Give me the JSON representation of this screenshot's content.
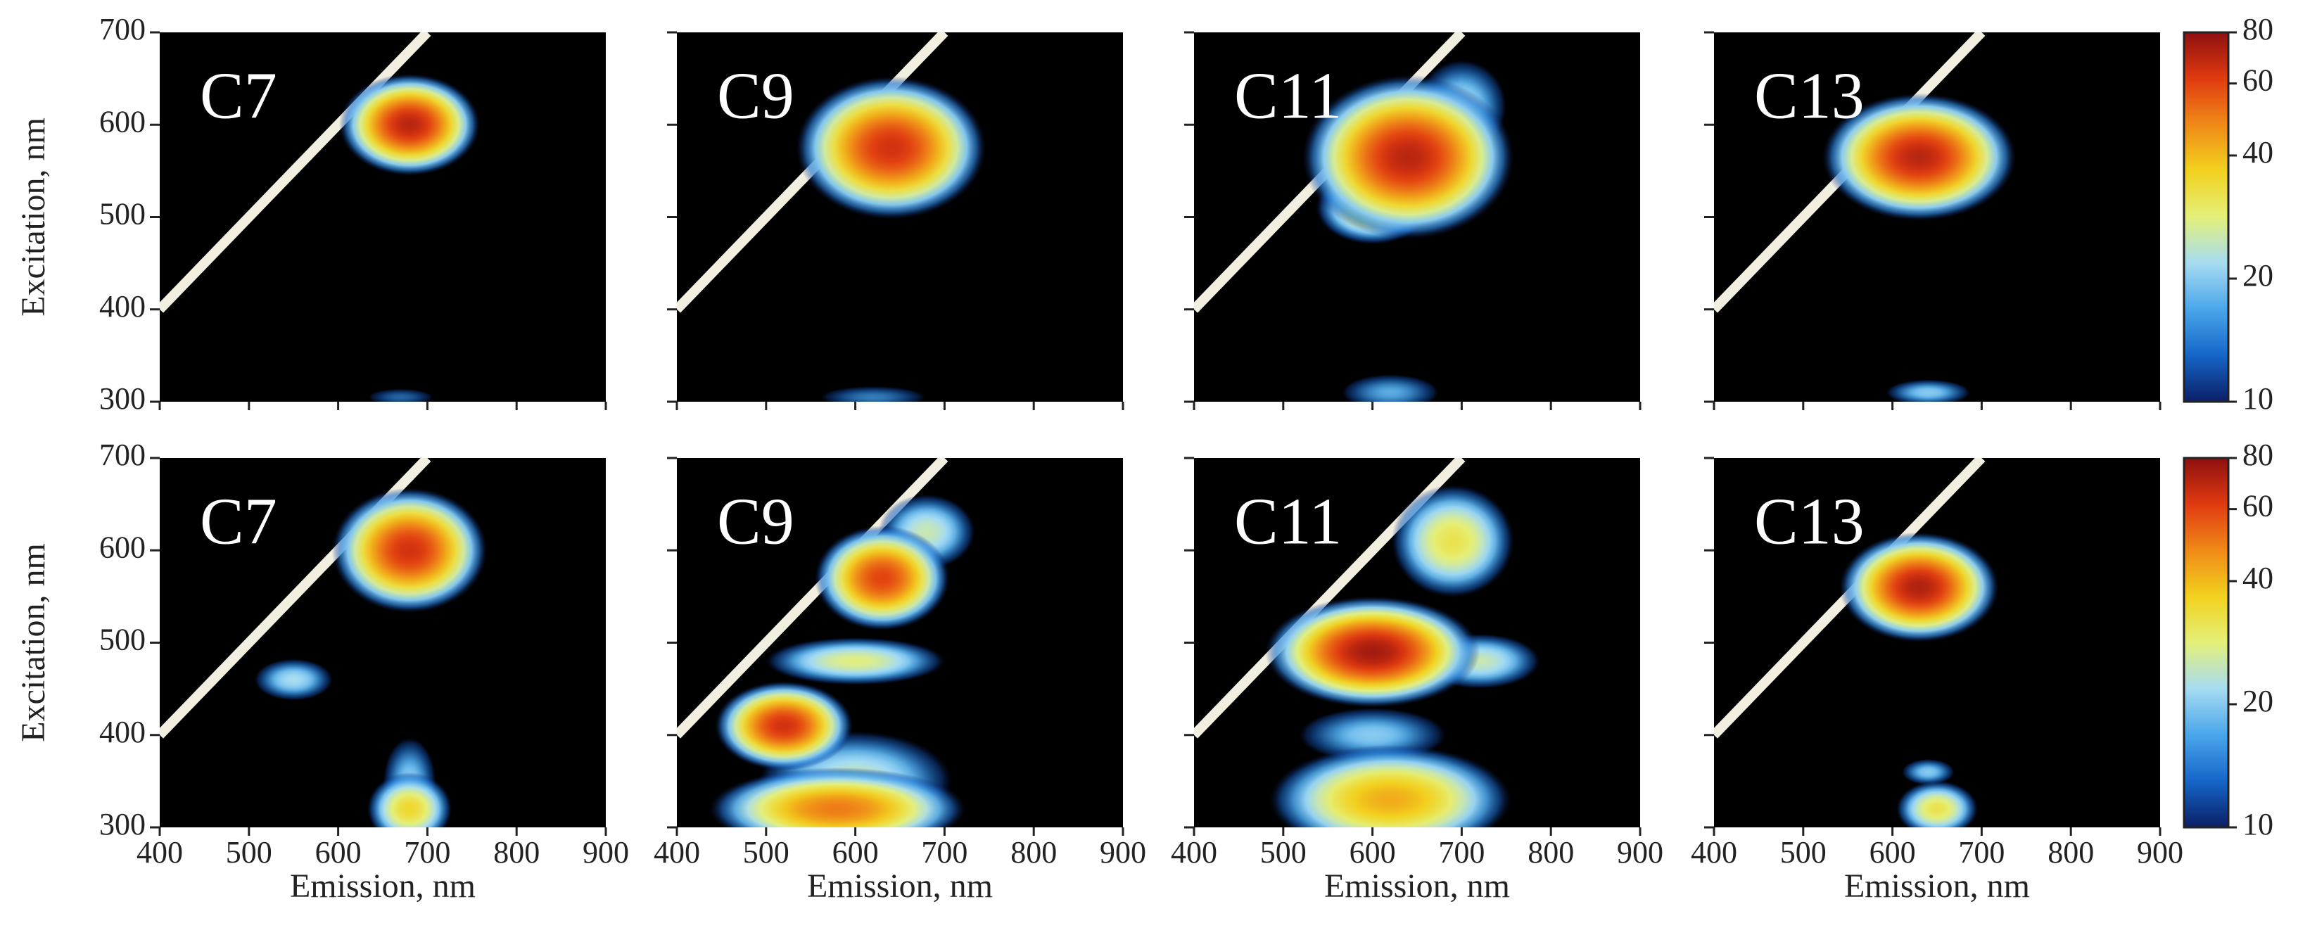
{
  "chart_data": [
    {
      "type": "heatmap",
      "label": "C7",
      "ylabel": "Excitation, nm",
      "xlim": [
        400,
        900
      ],
      "ylim": [
        300,
        700
      ],
      "xticks": [
        400,
        500,
        600,
        700,
        800,
        900
      ],
      "yticks": [
        300,
        400,
        500,
        600,
        700
      ],
      "show_xtick_labels": false,
      "show_ytick_labels": true,
      "peaks": [
        {
          "x": 670,
          "y": 305,
          "value": 15,
          "sx": 40,
          "sy": 10
        },
        {
          "x": 680,
          "y": 600,
          "value": 70,
          "sx": 40,
          "sy": 28
        }
      ]
    },
    {
      "type": "heatmap",
      "label": "C9",
      "xlim": [
        400,
        900
      ],
      "ylim": [
        300,
        700
      ],
      "xticks": [
        400,
        500,
        600,
        700,
        800,
        900
      ],
      "yticks": [
        300,
        400,
        500,
        600,
        700
      ],
      "show_xtick_labels": false,
      "show_ytick_labels": false,
      "peaks": [
        {
          "x": 620,
          "y": 305,
          "value": 16,
          "sx": 60,
          "sy": 12
        },
        {
          "x": 640,
          "y": 575,
          "value": 65,
          "sx": 55,
          "sy": 40
        }
      ]
    },
    {
      "type": "heatmap",
      "label": "C11",
      "xlim": [
        400,
        900
      ],
      "ylim": [
        300,
        700
      ],
      "xticks": [
        400,
        500,
        600,
        700,
        800,
        900
      ],
      "yticks": [
        300,
        400,
        500,
        600,
        700
      ],
      "show_xtick_labels": false,
      "show_ytick_labels": false,
      "peaks": [
        {
          "x": 620,
          "y": 310,
          "value": 18,
          "sx": 50,
          "sy": 18
        },
        {
          "x": 700,
          "y": 620,
          "value": 22,
          "sx": 40,
          "sy": 40
        },
        {
          "x": 600,
          "y": 510,
          "value": 35,
          "sx": 40,
          "sy": 25
        },
        {
          "x": 640,
          "y": 565,
          "value": 70,
          "sx": 60,
          "sy": 45
        }
      ]
    },
    {
      "type": "heatmap",
      "label": "C13",
      "xlim": [
        400,
        900
      ],
      "ylim": [
        300,
        700
      ],
      "xticks": [
        400,
        500,
        600,
        700,
        800,
        900
      ],
      "yticks": [
        300,
        400,
        500,
        600,
        700
      ],
      "show_xtick_labels": false,
      "show_ytick_labels": false,
      "peaks": [
        {
          "x": 640,
          "y": 310,
          "value": 20,
          "sx": 40,
          "sy": 12
        },
        {
          "x": 630,
          "y": 565,
          "value": 70,
          "sx": 55,
          "sy": 35
        }
      ]
    },
    {
      "type": "heatmap",
      "label": "C7",
      "ylabel": "Excitation, nm",
      "xlabel": "Emission, nm",
      "xlim": [
        400,
        900
      ],
      "ylim": [
        300,
        700
      ],
      "xticks": [
        400,
        500,
        600,
        700,
        800,
        900
      ],
      "yticks": [
        300,
        400,
        500,
        600,
        700
      ],
      "show_xtick_labels": true,
      "show_ytick_labels": true,
      "peaks": [
        {
          "x": 680,
          "y": 350,
          "value": 20,
          "sx": 25,
          "sy": 40
        },
        {
          "x": 550,
          "y": 460,
          "value": 22,
          "sx": 35,
          "sy": 18
        },
        {
          "x": 680,
          "y": 320,
          "value": 35,
          "sx": 30,
          "sy": 25
        },
        {
          "x": 680,
          "y": 600,
          "value": 65,
          "sx": 45,
          "sy": 35
        }
      ]
    },
    {
      "type": "heatmap",
      "label": "C9",
      "xlabel": "Emission, nm",
      "xlim": [
        400,
        900
      ],
      "ylim": [
        300,
        700
      ],
      "xticks": [
        400,
        500,
        600,
        700,
        800,
        900
      ],
      "yticks": [
        300,
        400,
        500,
        600,
        700
      ],
      "show_xtick_labels": true,
      "show_ytick_labels": false,
      "peaks": [
        {
          "x": 600,
          "y": 350,
          "value": 25,
          "sx": 80,
          "sy": 40
        },
        {
          "x": 680,
          "y": 620,
          "value": 25,
          "sx": 40,
          "sy": 30
        },
        {
          "x": 600,
          "y": 480,
          "value": 28,
          "sx": 70,
          "sy": 18
        },
        {
          "x": 580,
          "y": 320,
          "value": 50,
          "sx": 80,
          "sy": 25
        },
        {
          "x": 630,
          "y": 570,
          "value": 60,
          "sx": 40,
          "sy": 30
        },
        {
          "x": 520,
          "y": 410,
          "value": 65,
          "sx": 40,
          "sy": 25
        }
      ]
    },
    {
      "type": "heatmap",
      "label": "C11",
      "xlabel": "Emission, nm",
      "xlim": [
        400,
        900
      ],
      "ylim": [
        300,
        700
      ],
      "xticks": [
        400,
        500,
        600,
        700,
        800,
        900
      ],
      "yticks": [
        300,
        400,
        500,
        600,
        700
      ],
      "show_xtick_labels": true,
      "show_ytick_labels": false,
      "peaks": [
        {
          "x": 600,
          "y": 400,
          "value": 20,
          "sx": 70,
          "sy": 25
        },
        {
          "x": 720,
          "y": 480,
          "value": 25,
          "sx": 50,
          "sy": 22
        },
        {
          "x": 690,
          "y": 610,
          "value": 32,
          "sx": 45,
          "sy": 40
        },
        {
          "x": 620,
          "y": 330,
          "value": 42,
          "sx": 80,
          "sy": 35
        },
        {
          "x": 600,
          "y": 490,
          "value": 75,
          "sx": 60,
          "sy": 30
        }
      ]
    },
    {
      "type": "heatmap",
      "label": "C13",
      "xlabel": "Emission, nm",
      "xlim": [
        400,
        900
      ],
      "ylim": [
        300,
        700
      ],
      "xticks": [
        400,
        500,
        600,
        700,
        800,
        900
      ],
      "yticks": [
        300,
        400,
        500,
        600,
        700
      ],
      "show_xtick_labels": true,
      "show_ytick_labels": false,
      "peaks": [
        {
          "x": 640,
          "y": 360,
          "value": 20,
          "sx": 25,
          "sy": 12
        },
        {
          "x": 650,
          "y": 320,
          "value": 32,
          "sx": 30,
          "sy": 20
        },
        {
          "x": 630,
          "y": 560,
          "value": 72,
          "sx": 45,
          "sy": 30
        }
      ]
    },
    {
      "type": "colorbar",
      "log": true,
      "zlim": [
        10,
        80
      ],
      "zticks": [
        10,
        20,
        40,
        60,
        80
      ],
      "colormap": [
        "#0b1f66",
        "#1565c8",
        "#4aa6ea",
        "#a6dcf2",
        "#e4f07a",
        "#f2d21e",
        "#f08a18",
        "#e03a10",
        "#8e1010"
      ]
    },
    {
      "type": "colorbar",
      "log": true,
      "zlim": [
        10,
        80
      ],
      "zticks": [
        10,
        20,
        40,
        60,
        80
      ],
      "colormap": [
        "#0b1f66",
        "#1565c8",
        "#4aa6ea",
        "#a6dcf2",
        "#e4f07a",
        "#f2d21e",
        "#f08a18",
        "#e03a10",
        "#8e1010"
      ]
    }
  ]
}
